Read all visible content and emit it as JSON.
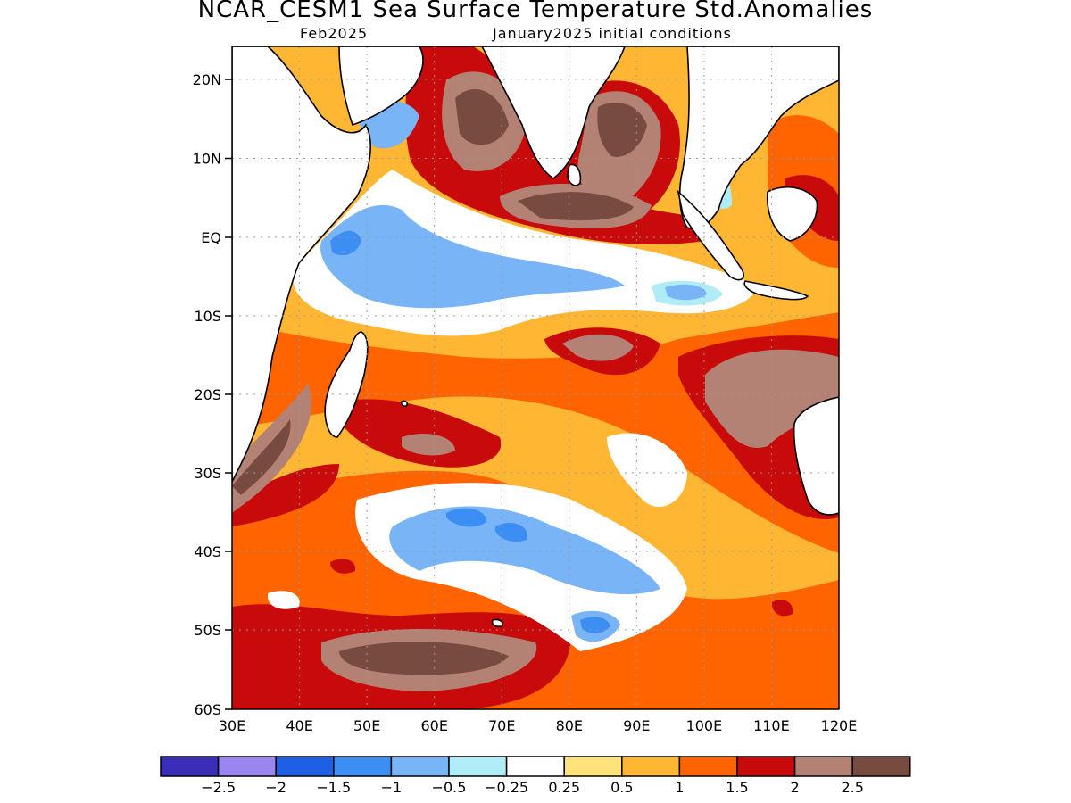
{
  "header": {
    "title": "NCAR_CESM1 Sea Surface Temperature Std.Anomalies",
    "month": "Feb2025",
    "init": "January2025 initial conditions"
  },
  "axes": {
    "lat_labels": [
      "20N",
      "10N",
      "EQ",
      "10S",
      "20S",
      "30S",
      "40S",
      "50S",
      "60S"
    ],
    "lon_labels": [
      "30E",
      "40E",
      "50E",
      "60E",
      "70E",
      "80E",
      "90E",
      "100E",
      "110E",
      "120E"
    ]
  },
  "colorbar": {
    "colors": [
      "#3a2db8",
      "#9b86f0",
      "#1f5fe6",
      "#3c8ef2",
      "#78b4f6",
      "#b0ecf6",
      "#ffffff",
      "#ffe37a",
      "#ffb733",
      "#ff6400",
      "#c80a0a",
      "#b48274",
      "#784b40"
    ],
    "labels": [
      "-2.5",
      "-2",
      "-1.5",
      "-1",
      "-0.5",
      "-0.25",
      "0.25",
      "0.5",
      "1",
      "1.5",
      "2",
      "2.5"
    ]
  }
}
